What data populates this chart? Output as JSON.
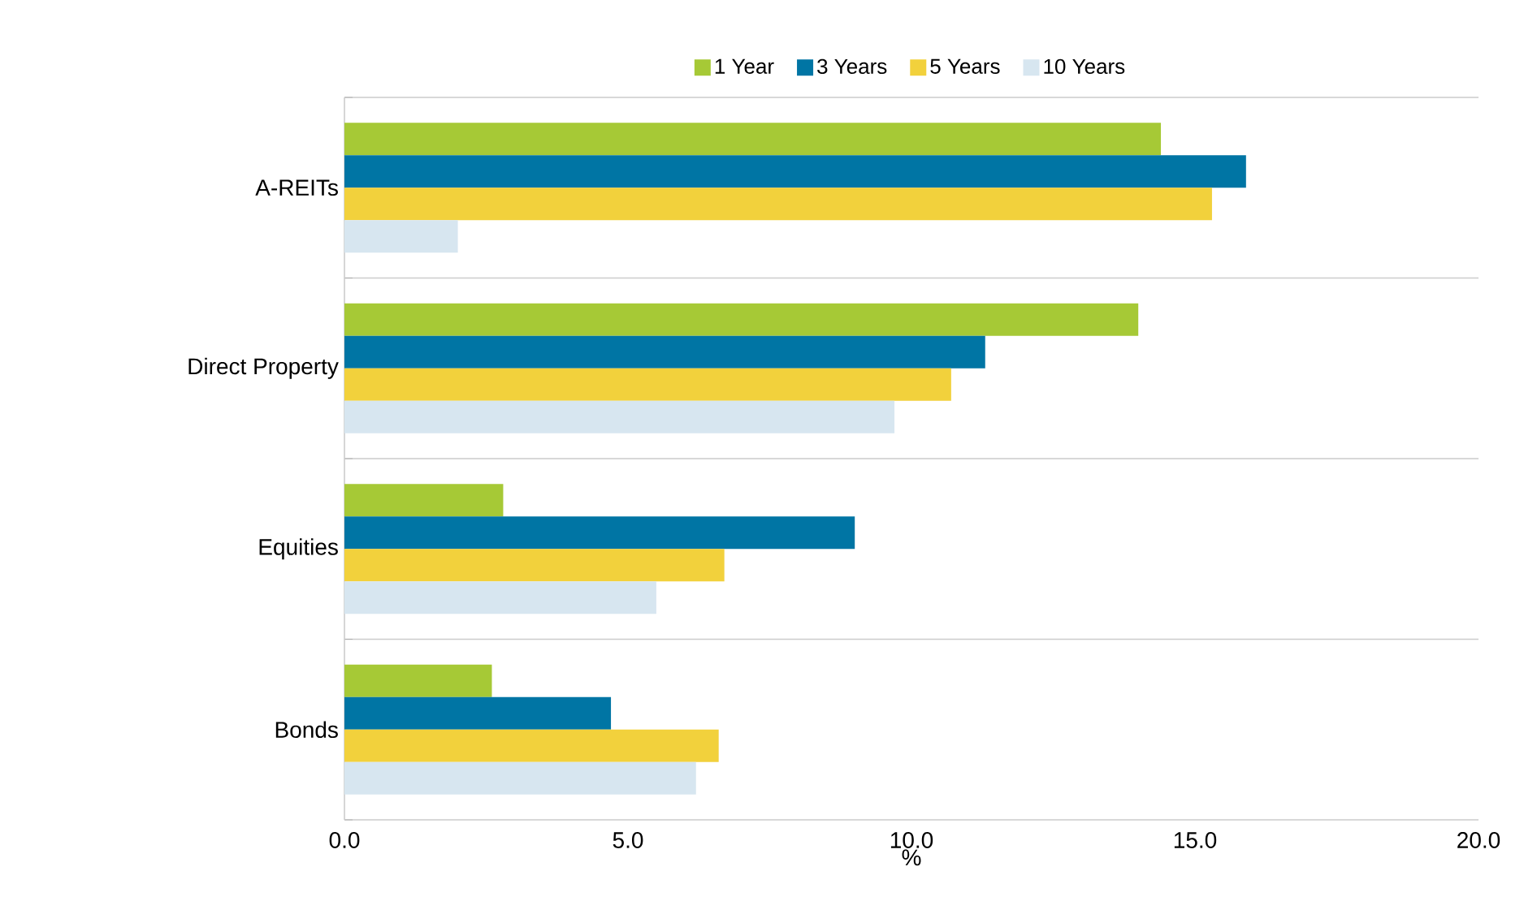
{
  "chart_data": {
    "type": "bar",
    "orientation": "horizontal",
    "xlabel": "%",
    "categories": [
      "A-REITs",
      "Direct Property",
      "Equities",
      "Bonds"
    ],
    "series": [
      {
        "name": "1 Year",
        "color": "#a6c936",
        "values": [
          14.4,
          14.0,
          2.8,
          2.6
        ]
      },
      {
        "name": "3 Years",
        "color": "#0075a4",
        "values": [
          15.9,
          11.3,
          9.0,
          4.7
        ]
      },
      {
        "name": "5 Years",
        "color": "#f2d13c",
        "values": [
          15.3,
          10.7,
          6.7,
          6.6
        ]
      },
      {
        "name": "10 Years",
        "color": "#d7e6f0",
        "values": [
          2.0,
          9.7,
          5.5,
          6.2
        ]
      }
    ],
    "xlim": [
      0,
      20
    ],
    "xticks": [
      {
        "value": 0,
        "label": "0.0"
      },
      {
        "value": 5,
        "label": "5.0"
      },
      {
        "value": 10,
        "label": "10.0"
      },
      {
        "value": 15,
        "label": "15.0"
      },
      {
        "value": 20,
        "label": "20.0"
      }
    ],
    "grid": "y",
    "legend": "top"
  }
}
